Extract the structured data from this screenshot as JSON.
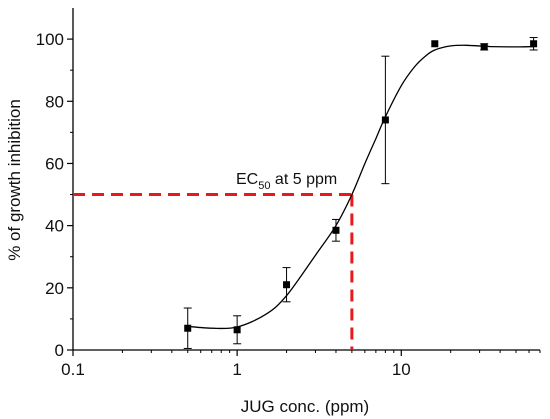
{
  "chart_data": {
    "type": "scatter",
    "xlabel": "JUG conc.  (ppm)",
    "ylabel": "% of growth inhibition",
    "x_scale": "log",
    "xlim": [
      0.1,
      70
    ],
    "ylim": [
      0,
      110
    ],
    "x_ticks": [
      {
        "value": 0.1,
        "label": "0.1"
      },
      {
        "value": 1,
        "label": "1"
      },
      {
        "value": 10,
        "label": "10"
      }
    ],
    "y_ticks": [
      {
        "value": 0,
        "label": "0"
      },
      {
        "value": 20,
        "label": "20"
      },
      {
        "value": 40,
        "label": "40"
      },
      {
        "value": 60,
        "label": "60"
      },
      {
        "value": 80,
        "label": "80"
      },
      {
        "value": 100,
        "label": "100"
      }
    ],
    "grid": false,
    "points": [
      {
        "x": 0.5,
        "y": 7,
        "err": 6.5
      },
      {
        "x": 1,
        "y": 6.5,
        "err": 4.5
      },
      {
        "x": 2,
        "y": 21,
        "err": 5.5
      },
      {
        "x": 4,
        "y": 38.5,
        "err": 3.5
      },
      {
        "x": 8,
        "y": 74,
        "err": 20.5
      },
      {
        "x": 16,
        "y": 98.5,
        "err": 0
      },
      {
        "x": 32,
        "y": 97.5,
        "err": 1
      },
      {
        "x": 64,
        "y": 98.5,
        "err": 2
      }
    ],
    "fit_curve": [
      [
        0.5,
        7.6
      ],
      [
        0.7,
        7.0
      ],
      [
        1.0,
        7.4
      ],
      [
        1.5,
        11.5
      ],
      [
        2.0,
        17.5
      ],
      [
        3.0,
        30.5
      ],
      [
        4.0,
        40.0
      ],
      [
        5.0,
        50.0
      ],
      [
        6.0,
        60.0
      ],
      [
        7.0,
        68.0
      ],
      [
        8.0,
        75.0
      ],
      [
        10.0,
        85.0
      ],
      [
        12.0,
        91.0
      ],
      [
        14.0,
        94.5
      ],
      [
        16.0,
        96.5
      ],
      [
        20.0,
        97.8
      ],
      [
        25.0,
        98.0
      ],
      [
        35.0,
        97.6
      ],
      [
        50.0,
        97.5
      ],
      [
        64.0,
        97.6
      ]
    ],
    "annotation": {
      "prefix": "EC",
      "subscript": "50",
      "suffix": " at 5 ppm",
      "x": 5,
      "y": 50,
      "line_color": "#e8191c"
    },
    "colors": {
      "marker": "#000000",
      "curve": "#000000",
      "axis": "#000000"
    }
  }
}
